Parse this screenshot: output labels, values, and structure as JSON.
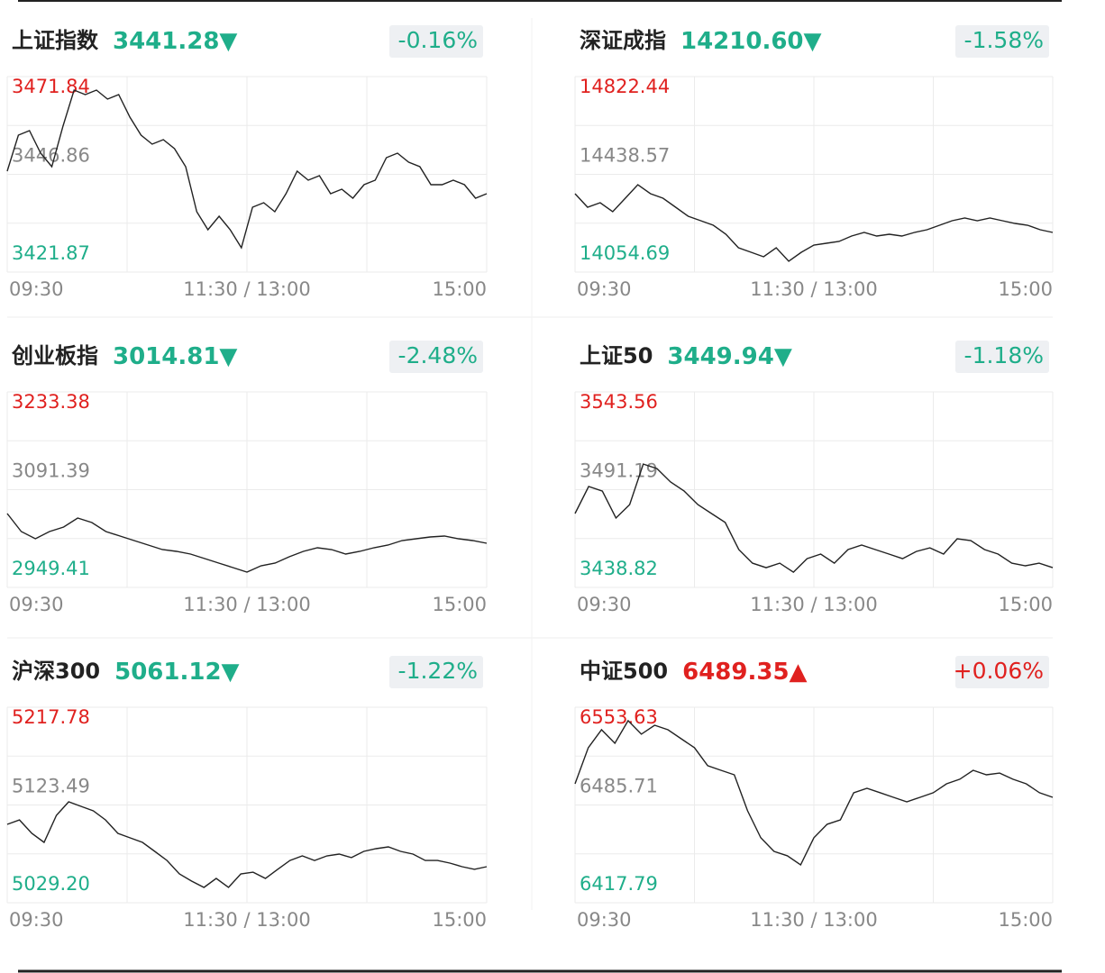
{
  "chart_data": [
    {
      "type": "line",
      "title": "上证指数",
      "last": "3441.28",
      "arrow": "▼",
      "change": "-0.16%",
      "color": "#1fae8a",
      "line_color": "#222222",
      "ylim": [
        3421.87,
        3471.84
      ],
      "yticks": [
        3421.87,
        3446.86,
        3471.84
      ],
      "x_labels": [
        "09:30",
        "11:30 / 13:00",
        "15:00"
      ],
      "values": [
        3447.66,
        3456.87,
        3458.03,
        3452.27,
        3448.82,
        3459.18,
        3468.39,
        3467.24,
        3468.39,
        3466.09,
        3467.24,
        3461.48,
        3456.87,
        3454.57,
        3455.72,
        3453.42,
        3448.82,
        3437.3,
        3432.69,
        3436.15,
        3432.69,
        3428.09,
        3438.45,
        3439.6,
        3437.3,
        3441.91,
        3447.66,
        3445.36,
        3446.51,
        3441.91,
        3443.06,
        3440.75,
        3444.21,
        3445.36,
        3451.12,
        3452.27,
        3449.97,
        3448.82,
        3444.21,
        3444.21,
        3445.36,
        3444.21,
        3440.75,
        3441.91
      ]
    },
    {
      "type": "line",
      "title": "深证成指",
      "last": "14210.60",
      "arrow": "▼",
      "change": "-1.58%",
      "color": "#1fae8a",
      "line_color": "#222222",
      "ylim": [
        14054.69,
        14822.44
      ],
      "yticks": [
        14054.69,
        14438.57,
        14822.44
      ],
      "x_labels": [
        "09:30",
        "11:30 / 13:00",
        "15:00"
      ],
      "values": [
        14362.5,
        14309.4,
        14327.1,
        14291.7,
        14344.8,
        14397.9,
        14362.5,
        14344.8,
        14309.4,
        14274.1,
        14256.4,
        14238.7,
        14203.3,
        14150.2,
        14132.5,
        14114.8,
        14150.2,
        14097.2,
        14132.5,
        14160.8,
        14167.9,
        14175.0,
        14196.2,
        14210.4,
        14196.2,
        14203.3,
        14196.2,
        14210.4,
        14221.0,
        14238.7,
        14256.4,
        14267.0,
        14256.4,
        14267.0,
        14256.4,
        14245.8,
        14238.7,
        14221.0,
        14210.4
      ]
    },
    {
      "type": "line",
      "title": "创业板指",
      "last": "3014.81",
      "arrow": "▼",
      "change": "-2.48%",
      "color": "#1fae8a",
      "line_color": "#222222",
      "ylim": [
        2949.41,
        3233.38
      ],
      "yticks": [
        2949.41,
        3091.39,
        3233.38
      ],
      "x_labels": [
        "09:30",
        "11:30 / 13:00",
        "15:00"
      ],
      "values": [
        3056.7,
        3030.5,
        3020.1,
        3030.5,
        3037.1,
        3050.2,
        3043.6,
        3030.5,
        3024.0,
        3017.4,
        3010.9,
        3004.4,
        3001.7,
        2997.8,
        2991.3,
        2984.7,
        2978.2,
        2971.6,
        2980.8,
        2984.7,
        2993.9,
        3001.7,
        3007.0,
        3004.4,
        2997.8,
        3001.7,
        3007.0,
        3010.9,
        3017.4,
        3020.1,
        3022.7,
        3024.0,
        3020.1,
        3017.4,
        3013.5
      ]
    },
    {
      "type": "line",
      "title": "上证50",
      "last": "3449.94",
      "arrow": "▼",
      "change": "-1.18%",
      "color": "#1fae8a",
      "line_color": "#222222",
      "ylim": [
        3438.82,
        3543.56
      ],
      "yticks": [
        3438.82,
        3491.19,
        3543.56
      ],
      "x_labels": [
        "09:30",
        "11:30 / 13:00",
        "15:00"
      ],
      "values": [
        3478.4,
        3492.9,
        3490.4,
        3476.0,
        3483.2,
        3504.9,
        3502.5,
        3495.3,
        3490.4,
        3483.2,
        3478.4,
        3473.6,
        3459.1,
        3451.8,
        3449.4,
        3451.8,
        3447.0,
        3454.2,
        3456.7,
        3451.8,
        3459.1,
        3461.5,
        3459.1,
        3456.7,
        3454.2,
        3458.1,
        3460.0,
        3456.7,
        3464.9,
        3463.9,
        3459.1,
        3456.7,
        3451.8,
        3450.4,
        3451.8,
        3449.4
      ]
    },
    {
      "type": "line",
      "title": "沪深300",
      "last": "5061.12",
      "arrow": "▼",
      "change": "-1.22%",
      "color": "#1fae8a",
      "line_color": "#222222",
      "ylim": [
        5029.2,
        5217.78
      ],
      "yticks": [
        {
          "value": 5029.2,
          "label": "5029.20"
        },
        5123.49,
        5217.78
      ],
      "x_labels": [
        "09:30",
        "11:30 / 13:00",
        "15:00"
      ],
      "values": [
        5104.8,
        5109.1,
        5096.1,
        5087.4,
        5113.5,
        5126.5,
        5122.2,
        5117.8,
        5109.1,
        5096.1,
        5091.8,
        5087.4,
        5078.7,
        5070.0,
        5057.0,
        5050.1,
        5044.0,
        5052.7,
        5044.0,
        5057.0,
        5058.7,
        5052.7,
        5061.4,
        5070.0,
        5074.4,
        5070.0,
        5074.4,
        5076.1,
        5072.7,
        5078.7,
        5081.3,
        5083.1,
        5078.7,
        5076.1,
        5070.0,
        5070.0,
        5067.4,
        5064.0,
        5061.4,
        5064.0
      ]
    },
    {
      "type": "line",
      "title": "中证500",
      "last": "6489.35",
      "arrow": "▲",
      "change": "+0.06%",
      "color": "#e0211f",
      "line_color": "#222222",
      "ylim": [
        6417.79,
        6553.63
      ],
      "yticks": [
        6417.79,
        6485.71,
        6553.63
      ],
      "x_labels": [
        "09:30",
        "11:30 / 13:00",
        "15:00"
      ],
      "values": [
        6500.4,
        6525.5,
        6538.0,
        6528.6,
        6544.3,
        6534.9,
        6541.1,
        6538.0,
        6531.7,
        6525.5,
        6513.0,
        6509.8,
        6506.7,
        6481.7,
        6462.9,
        6453.5,
        6450.4,
        6444.1,
        6462.9,
        6472.3,
        6475.4,
        6494.2,
        6497.3,
        6494.2,
        6491.0,
        6487.9,
        6491.0,
        6494.2,
        6500.4,
        6503.6,
        6509.8,
        6506.7,
        6507.9,
        6503.6,
        6500.4,
        6494.2,
        6491.0
      ]
    }
  ]
}
